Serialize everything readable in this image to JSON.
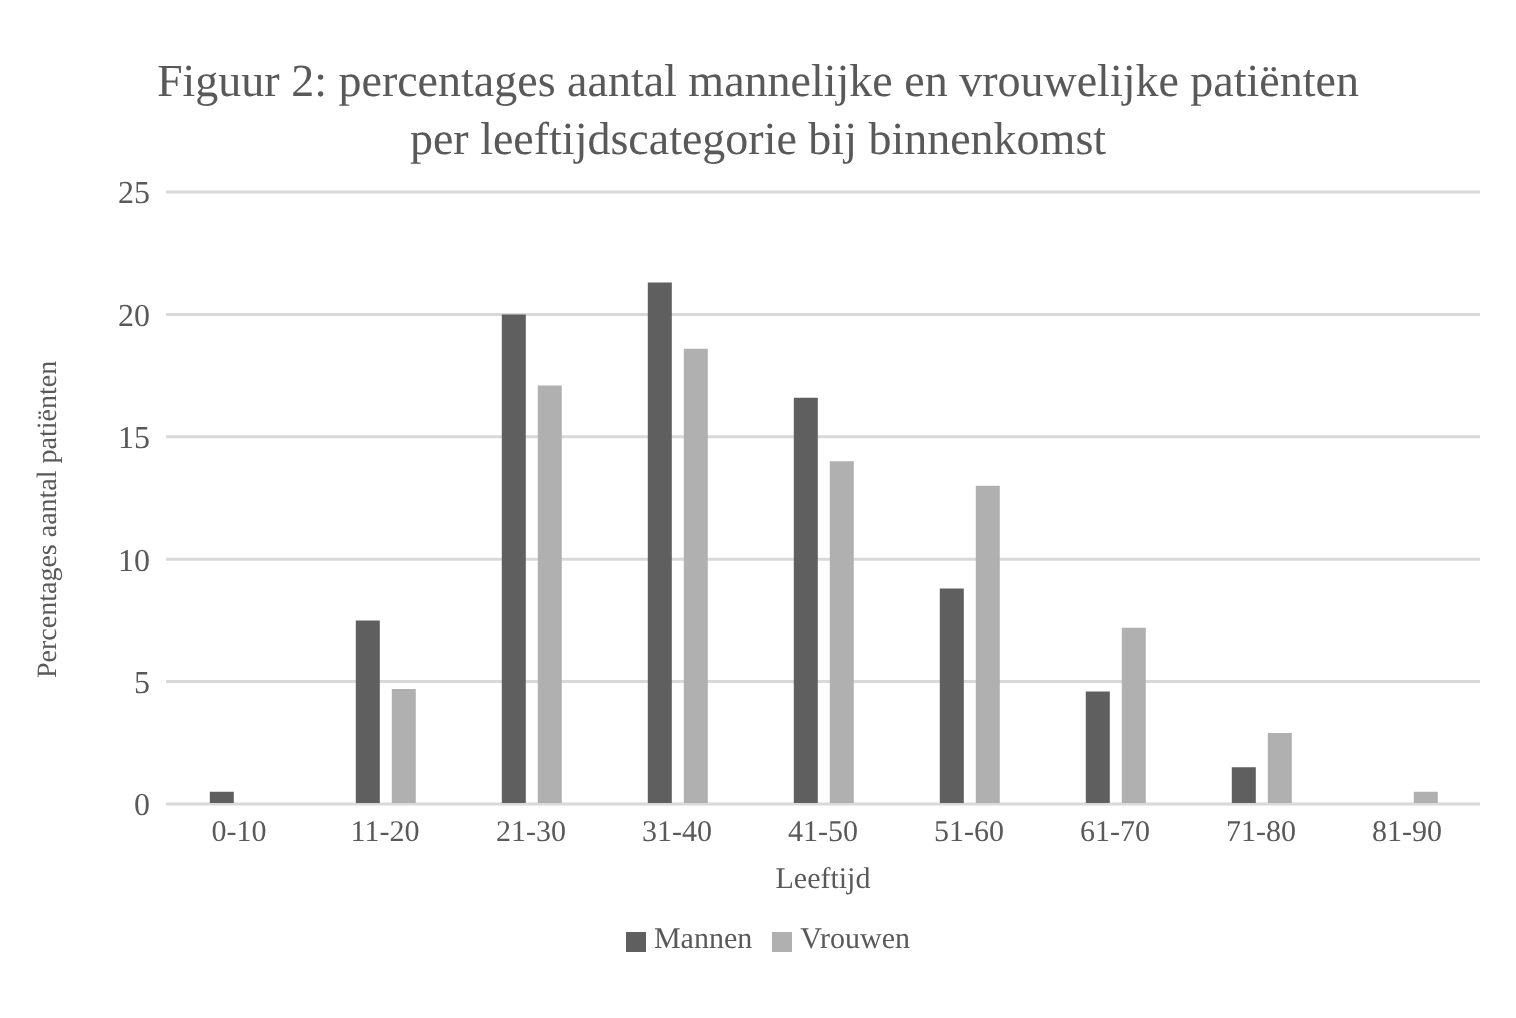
{
  "chart_data": {
    "type": "bar",
    "title": "Figuur 2: percentages aantal mannelijke en vrouwelijke patiënten per leeftijdscategorie bij binnenkomst",
    "xlabel": "Leeftijd",
    "ylabel": "Percentages aantal patiënten",
    "categories": [
      "0-10",
      "11-20",
      "21-30",
      "31-40",
      "41-50",
      "51-60",
      "61-70",
      "71-80",
      "81-90"
    ],
    "series": [
      {
        "name": "Mannen",
        "color": "#5f5f5f",
        "values": [
          0.5,
          7.5,
          20.0,
          21.3,
          16.6,
          8.8,
          4.6,
          1.5,
          0
        ]
      },
      {
        "name": "Vrouwen",
        "color": "#b0b0b0",
        "values": [
          0,
          4.7,
          17.1,
          18.6,
          14.0,
          13.0,
          7.2,
          2.9,
          0.5
        ]
      }
    ],
    "ylim": [
      0,
      25
    ],
    "yticks": [
      0,
      5,
      10,
      15,
      20,
      25
    ],
    "grid": "y",
    "legend": "bottom"
  }
}
